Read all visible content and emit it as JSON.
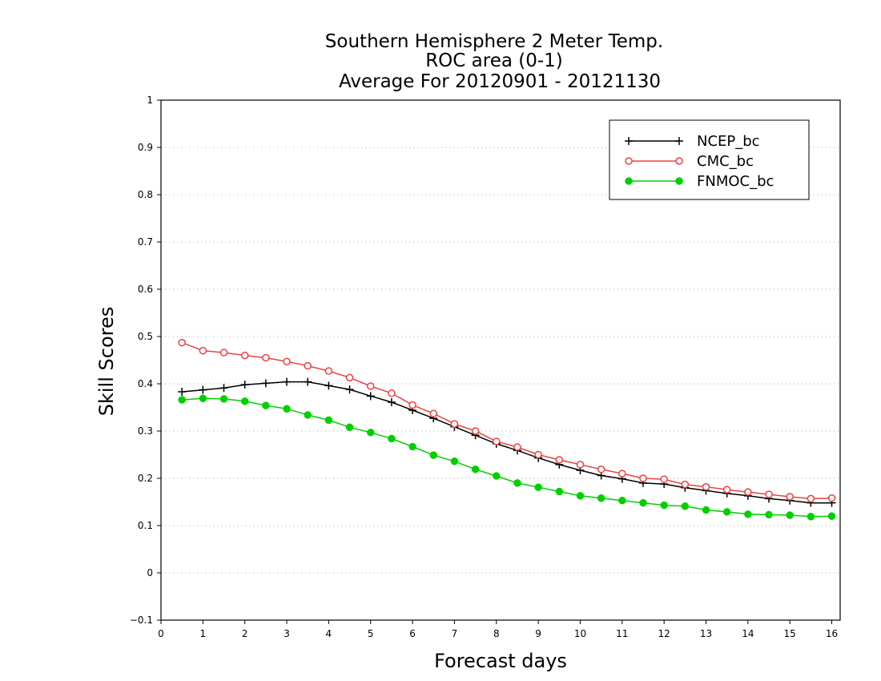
{
  "chart_data": {
    "type": "line",
    "title_lines": [
      "Southern Hemisphere 2 Meter Temp.",
      "ROC area (0-1)",
      "Average For 20120901 - 20121130"
    ],
    "xlabel": "Forecast days",
    "ylabel": "Skill Scores",
    "xlim": [
      0,
      16.2
    ],
    "ylim": [
      -0.1,
      1
    ],
    "xticks": [
      0,
      1,
      2,
      3,
      4,
      5,
      6,
      7,
      8,
      9,
      10,
      11,
      12,
      13,
      14,
      15,
      16
    ],
    "yticks": [
      -0.1,
      0,
      0.1,
      0.2,
      0.3,
      0.4,
      0.5,
      0.6,
      0.7,
      0.8,
      0.9,
      1
    ],
    "ytick_labels": [
      "−0.1",
      "0",
      "0.1",
      "0.2",
      "0.3",
      "0.4",
      "0.5",
      "0.6",
      "0.7",
      "0.8",
      "0.9",
      "1"
    ],
    "grid": true,
    "legend_position": "top-right",
    "x": [
      0.5,
      1,
      1.5,
      2,
      2.5,
      3,
      3.5,
      4,
      4.5,
      5,
      5.5,
      6,
      6.5,
      7,
      7.5,
      8,
      8.5,
      9,
      9.5,
      10,
      10.5,
      11,
      11.5,
      12,
      12.5,
      13,
      13.5,
      14,
      14.5,
      15,
      15.5,
      16
    ],
    "series": [
      {
        "name": "NCEP_bc",
        "color": "#000000",
        "marker": "plus",
        "values": [
          0.383,
          0.387,
          0.391,
          0.398,
          0.401,
          0.404,
          0.404,
          0.396,
          0.388,
          0.374,
          0.361,
          0.344,
          0.327,
          0.309,
          0.291,
          0.273,
          0.259,
          0.243,
          0.229,
          0.217,
          0.206,
          0.199,
          0.19,
          0.188,
          0.18,
          0.174,
          0.168,
          0.163,
          0.157,
          0.153,
          0.148,
          0.148
        ]
      },
      {
        "name": "CMC_bc",
        "color": "#f04040",
        "marker": "open-circle",
        "values": [
          0.487,
          0.47,
          0.466,
          0.46,
          0.455,
          0.447,
          0.438,
          0.427,
          0.413,
          0.395,
          0.38,
          0.355,
          0.337,
          0.315,
          0.3,
          0.278,
          0.266,
          0.25,
          0.239,
          0.229,
          0.219,
          0.21,
          0.2,
          0.198,
          0.187,
          0.182,
          0.176,
          0.171,
          0.166,
          0.161,
          0.157,
          0.158
        ]
      },
      {
        "name": "FNMOC_bc",
        "color": "#00d000",
        "marker": "filled-circle",
        "values": [
          0.366,
          0.369,
          0.368,
          0.363,
          0.354,
          0.347,
          0.334,
          0.323,
          0.308,
          0.297,
          0.284,
          0.267,
          0.249,
          0.236,
          0.219,
          0.205,
          0.19,
          0.181,
          0.172,
          0.163,
          0.158,
          0.153,
          0.148,
          0.143,
          0.141,
          0.133,
          0.129,
          0.124,
          0.123,
          0.122,
          0.119,
          0.12
        ]
      }
    ]
  }
}
